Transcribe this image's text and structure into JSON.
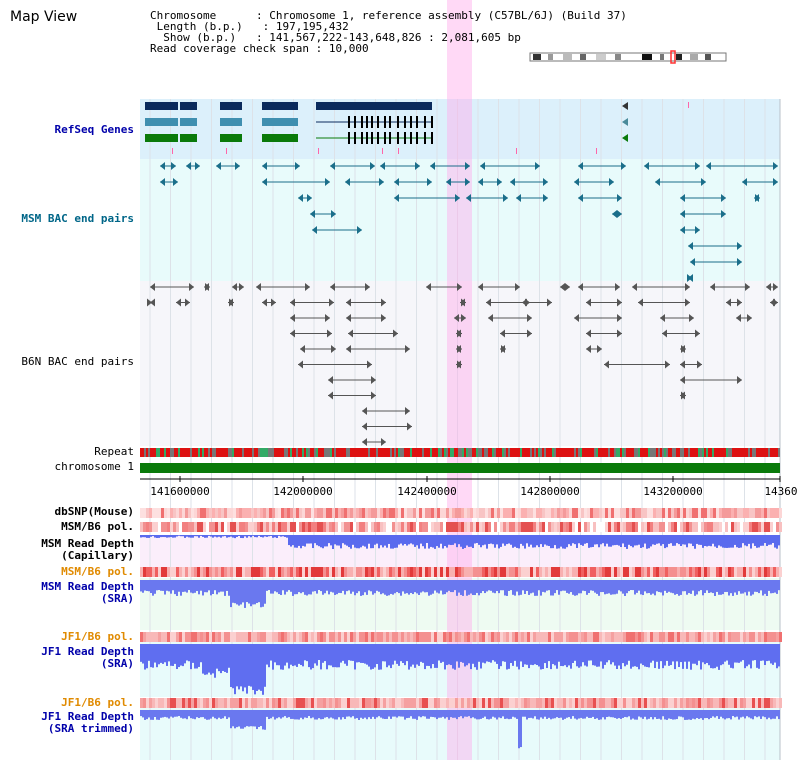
{
  "page": {
    "title": "Map View"
  },
  "header": {
    "chromosome_label": "Chromosome",
    "chromosome_value": "Chromosome 1, reference assembly (C57BL/6J) (Build 37)",
    "length_label": "Length (b.p.)",
    "length_value": "197,195,432",
    "show_label": "Show (b.p.)",
    "show_value": "141,567,222-143,648,826 : 2,081,605 bp",
    "span_label": "Read coverage check span",
    "span_value": "10,000"
  },
  "tracks": {
    "refseq": "RefSeq Genes",
    "msm_bac": "MSM BAC end pairs",
    "b6n_bac": "B6N BAC end pairs",
    "repeat": "Repeat",
    "chromosome": "chromosome 1",
    "dbsnp": "dbSNP(Mouse)",
    "msm_b6_pol": "MSM/B6 pol.",
    "msm_depth_cap": "MSM Read Depth",
    "msm_depth_cap_sub": "(Capillary)",
    "msm_b6_pol2": "MSM/B6 pol.",
    "msm_depth_sra": "MSM Read Depth",
    "msm_depth_sra_sub": "(SRA)",
    "jf1_b6_pol": "JF1/B6 pol.",
    "jf1_depth_sra": "JF1 Read Depth",
    "jf1_depth_sra_sub": "(SRA)",
    "jf1_b6_pol2": "JF1/B6 pol.",
    "jf1_depth_trim": "JF1 Read Depth",
    "jf1_depth_trim_sub": "(SRA trimmed)"
  },
  "axis": {
    "ticks": [
      "141600000",
      "142000000",
      "142400000",
      "142800000",
      "143200000",
      "14360"
    ]
  },
  "colors": {
    "refseq_text": "#0000aa",
    "msm_bac_text": "#006688",
    "b6n_text": "#000000",
    "orange_text": "#e08a00",
    "blue_text": "#0000aa",
    "highlight": "#ffd0f0",
    "refseq_bg": "#dcf0fb",
    "msm_bg": "#e8fbfb",
    "b6n_bg": "#f6f6fa"
  }
}
